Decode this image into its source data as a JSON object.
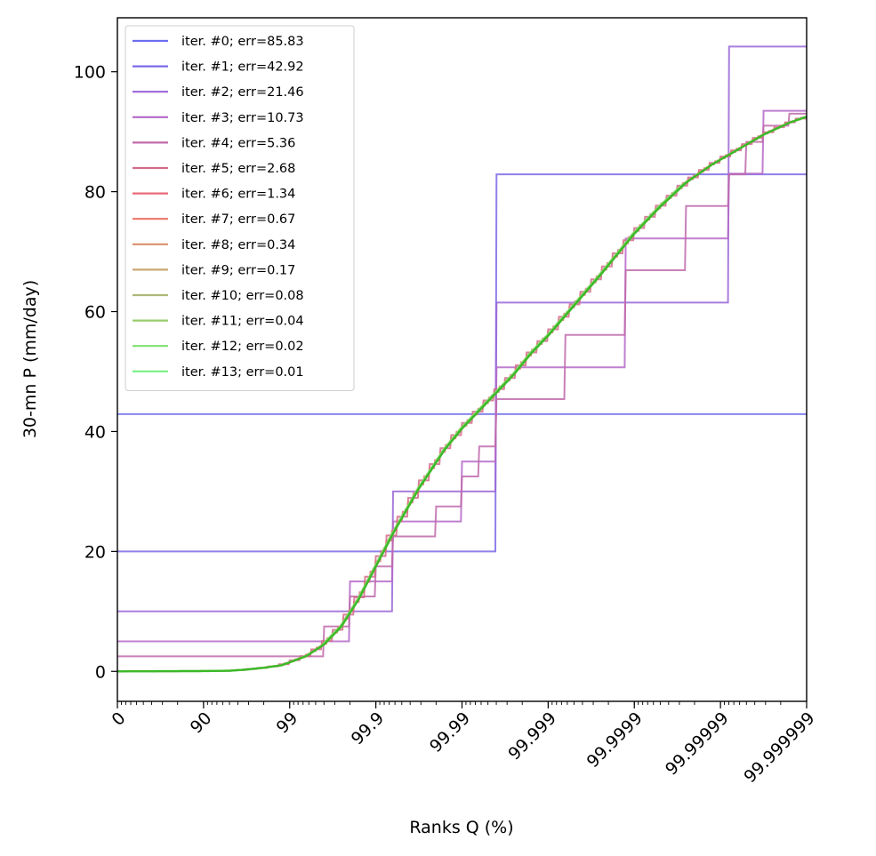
{
  "chart_data": {
    "type": "line",
    "title": "",
    "xlabel": "Ranks Q (%)",
    "ylabel": "30-mn P (mm/day)",
    "x_scale": "log-rank",
    "x_ticks": [
      "0",
      "90",
      "99",
      "99.9",
      "99.99",
      "99.999",
      "99.9999",
      "99.99999",
      "99.999999"
    ],
    "x_tick_decades": [
      0,
      1,
      2,
      3,
      4,
      5,
      6,
      7,
      8
    ],
    "xlim_decades": [
      0,
      8
    ],
    "y_ticks": [
      0,
      20,
      40,
      60,
      80,
      100
    ],
    "ylim": [
      -5,
      109
    ],
    "grid": false,
    "legend_position": "top-left",
    "series_names": [
      "iter. #0; err=85.83",
      "iter. #1; err=42.92",
      "iter. #2; err=21.46",
      "iter. #3; err=10.73",
      "iter. #4; err=5.36",
      "iter. #5; err=2.68",
      "iter. #6; err=1.34",
      "iter. #7; err=0.67",
      "iter. #8; err=0.34",
      "iter. #9; err=0.17",
      "iter. #10; err=0.08",
      "iter. #11; err=0.04",
      "iter. #12; err=0.02",
      "iter. #13; err=0.01"
    ],
    "series_colors": [
      "#6e6ef0",
      "#7b6ae6",
      "#9a66d6",
      "#b468c8",
      "#c06aac",
      "#d46a8a",
      "#e86a78",
      "#ea7868",
      "#d98f6c",
      "#c9a870",
      "#b0b878",
      "#98cc6c",
      "#80e070",
      "#78f088"
    ],
    "target_curve": {
      "x_decades": [
        0,
        0.5,
        1.0,
        1.3,
        1.5,
        1.7,
        1.9,
        2.0,
        2.2,
        2.4,
        2.6,
        2.8,
        3.0,
        3.2,
        3.5,
        3.8,
        4.0,
        4.2,
        4.4,
        4.6,
        4.8,
        5.0,
        5.3,
        5.6,
        5.8,
        6.0,
        6.3,
        6.6,
        6.9,
        7.2,
        7.5,
        7.8,
        8.0
      ],
      "y": [
        0,
        0.02,
        0.05,
        0.1,
        0.3,
        0.6,
        1.0,
        1.5,
        2.6,
        4.5,
        7.5,
        12.0,
        17.5,
        23.0,
        30.5,
        37.0,
        40.5,
        43.5,
        46.5,
        49.5,
        53.0,
        56.0,
        61.0,
        66.0,
        69.5,
        73.0,
        77.5,
        81.5,
        84.5,
        87.0,
        89.5,
        91.5,
        92.5
      ]
    },
    "steps": [
      {
        "edges": [
          0,
          8
        ],
        "levels": [
          42.9
        ]
      },
      {
        "edges": [
          0,
          4.4,
          8
        ],
        "levels": [
          20.0,
          82.9
        ]
      },
      {
        "edges": [
          0,
          3.2,
          4.4,
          7.1,
          8
        ],
        "levels": [
          10.0,
          30.0,
          61.5,
          104.2
        ]
      },
      {
        "edges": [
          0,
          2.7,
          3.2,
          4.0,
          4.4,
          5.9,
          7.1,
          7.5,
          8
        ],
        "levels": [
          5.0,
          15.0,
          25.0,
          35.0,
          50.7,
          72.2,
          83.0,
          93.5
        ]
      },
      {
        "edges": [
          0,
          2.4,
          2.7,
          3.0,
          3.2,
          3.7,
          4.0,
          4.2,
          4.4,
          5.2,
          5.9,
          6.6,
          7.1,
          7.3,
          7.5,
          7.8,
          8
        ],
        "levels": [
          2.5,
          7.5,
          12.5,
          17.5,
          22.5,
          27.5,
          32.5,
          37.5,
          45.4,
          56.1,
          66.9,
          77.6,
          82.9,
          88.3,
          91.0,
          93.0
        ]
      }
    ]
  }
}
